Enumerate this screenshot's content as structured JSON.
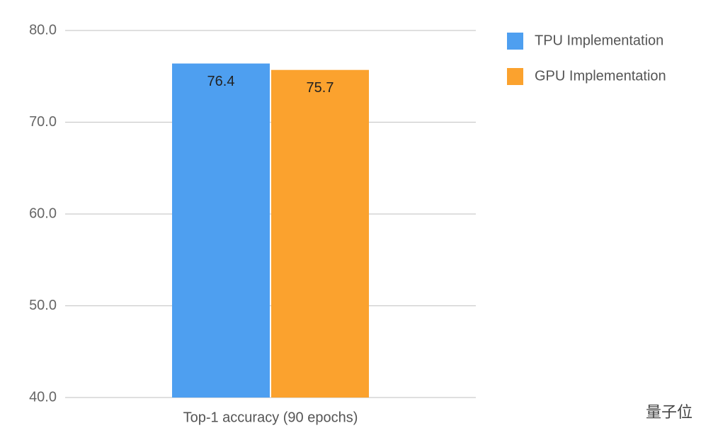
{
  "chart_data": {
    "type": "bar",
    "categories": [
      "Top-1 accuracy (90 epochs)"
    ],
    "series": [
      {
        "name": "TPU Implementation",
        "color": "#4e9ff0",
        "values": [
          76.4
        ]
      },
      {
        "name": "GPU Implementation",
        "color": "#fba22e",
        "values": [
          75.7
        ]
      }
    ],
    "ylim": [
      40,
      80
    ],
    "yticks": [
      {
        "value": 40,
        "label": "40.0"
      },
      {
        "value": 50,
        "label": "50.0"
      },
      {
        "value": 60,
        "label": "60.0"
      },
      {
        "value": 70,
        "label": "70.0"
      },
      {
        "value": 80,
        "label": "80.0"
      }
    ],
    "grid": true,
    "legend": "right",
    "watermark": "量子位"
  }
}
